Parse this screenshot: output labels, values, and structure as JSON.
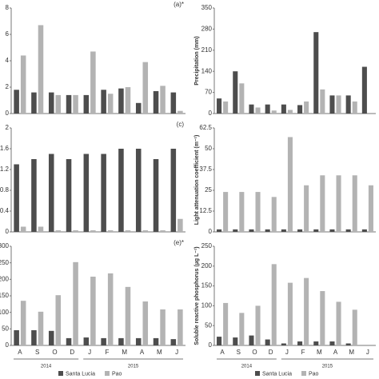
{
  "chart_data": [
    {
      "type": "bar",
      "title": "(a)*",
      "ylim": [
        0,
        8
      ],
      "yticks": [
        0,
        2,
        4,
        6,
        8
      ],
      "series": [
        {
          "color": "#4d4d4d",
          "values": [
            1.8,
            1.6,
            1.6,
            1.4,
            1.4,
            1.8,
            1.9,
            0.8,
            1.7,
            1.6
          ]
        },
        {
          "color": "#b3b3b3",
          "values": [
            4.4,
            6.7,
            1.4,
            1.4,
            4.7,
            1.5,
            2.0,
            3.9,
            2.1,
            0.2
          ]
        }
      ]
    },
    {
      "type": "bar",
      "y_label": "Precipitation (mm)",
      "ylim": [
        0,
        350
      ],
      "yticks": [
        0,
        70,
        140,
        210,
        280,
        350
      ],
      "series": [
        {
          "color": "#4d4d4d",
          "values": [
            50,
            140,
            30,
            30,
            30,
            28,
            270,
            60,
            60,
            155
          ]
        },
        {
          "color": "#b3b3b3",
          "values": [
            40,
            100,
            20,
            10,
            12,
            40,
            80,
            60,
            40,
            null
          ]
        }
      ]
    },
    {
      "type": "bar",
      "title": "(c)",
      "ylim": [
        0,
        2
      ],
      "yticks": [
        0,
        0.4,
        0.8,
        1.2,
        1.6,
        2
      ],
      "series": [
        {
          "color": "#4d4d4d",
          "values": [
            1.3,
            1.4,
            1.5,
            1.4,
            1.5,
            1.5,
            1.6,
            1.6,
            1.4,
            1.6
          ]
        },
        {
          "color": "#b3b3b3",
          "values": [
            0.1,
            0.1,
            0.03,
            0.03,
            0.03,
            0.03,
            0.03,
            0.03,
            0.03,
            0.25
          ]
        }
      ]
    },
    {
      "type": "bar",
      "y_label": "Light attenuation coefficient (m⁻¹)",
      "ylim": [
        0,
        62.5
      ],
      "yticks": [
        0,
        12.5,
        25,
        37.5,
        50,
        62.5
      ],
      "series": [
        {
          "color": "#4d4d4d",
          "values": [
            1.5,
            1.5,
            1.5,
            1.5,
            1.5,
            1.5,
            1.5,
            1.5,
            1.5,
            1.5
          ]
        },
        {
          "color": "#b3b3b3",
          "values": [
            24,
            24,
            24,
            21,
            57,
            28,
            34,
            34,
            34,
            28
          ]
        }
      ]
    },
    {
      "type": "bar",
      "title": "(e)*",
      "ylim": [
        0,
        300
      ],
      "yticks": [
        0,
        50,
        100,
        150,
        200,
        250,
        300
      ],
      "categories": [
        "A",
        "S",
        "O",
        "D",
        "J",
        "F",
        "M",
        "A",
        "M",
        "J"
      ],
      "series": [
        {
          "color": "#4d4d4d",
          "values": [
            46,
            46,
            44,
            22,
            24,
            22,
            22,
            22,
            22,
            19
          ]
        },
        {
          "color": "#b3b3b3",
          "values": [
            135,
            102,
            152,
            252,
            208,
            218,
            177,
            133,
            109,
            109
          ]
        }
      ]
    },
    {
      "type": "bar",
      "y_label": "Soluble reactive phosphorus (µg L⁻¹)",
      "ylim": [
        0,
        250
      ],
      "yticks": [
        0,
        50,
        100,
        150,
        200,
        250
      ],
      "categories": [
        "A",
        "S",
        "O",
        "D",
        "J",
        "F",
        "M",
        "A",
        "M",
        "J"
      ],
      "series": [
        {
          "color": "#4d4d4d",
          "values": [
            22,
            20,
            25,
            15,
            5,
            10,
            10,
            10,
            5,
            null
          ]
        },
        {
          "color": "#b3b3b3",
          "values": [
            107,
            82,
            100,
            205,
            158,
            170,
            137,
            110,
            90,
            null
          ]
        }
      ]
    }
  ],
  "years": [
    "2014",
    "2015"
  ],
  "legend": [
    "Santa Lucia",
    "Pao"
  ]
}
